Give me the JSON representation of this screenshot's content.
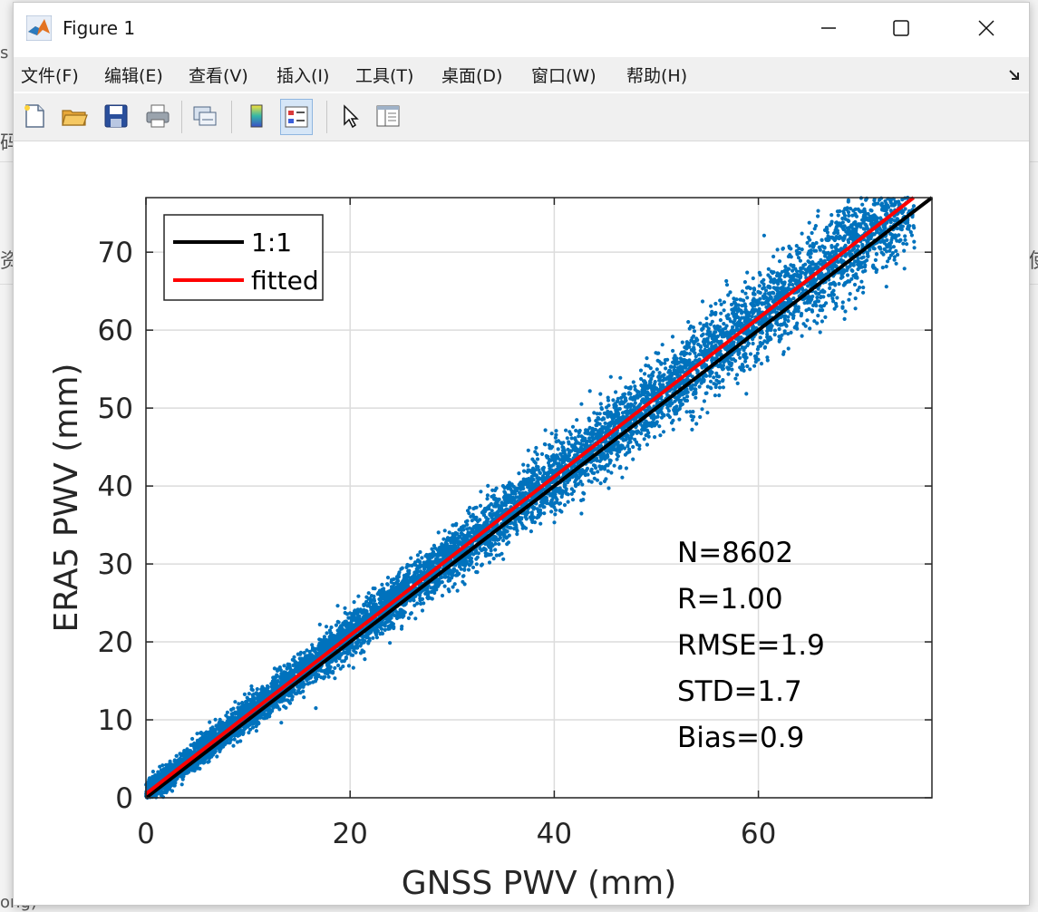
{
  "window": {
    "title": "Figure 1",
    "controls": {
      "minimize": "minimize",
      "maximize": "maximize",
      "close": "close"
    }
  },
  "menu": [
    {
      "label": "文件(F)"
    },
    {
      "label": "编辑(E)"
    },
    {
      "label": "查看(V)"
    },
    {
      "label": "插入(I)"
    },
    {
      "label": "工具(T)"
    },
    {
      "label": "桌面(D)"
    },
    {
      "label": "窗口(W)"
    },
    {
      "label": "帮助(H)"
    }
  ],
  "toolbar": [
    {
      "name": "new-figure-icon"
    },
    {
      "name": "open-file-icon"
    },
    {
      "name": "save-icon"
    },
    {
      "name": "print-icon"
    },
    {
      "name": "link-plot-icon"
    },
    {
      "name": "colorbar-icon"
    },
    {
      "name": "legend-icon",
      "active": true
    },
    {
      "name": "edit-plot-cursor-icon"
    },
    {
      "name": "property-inspector-icon"
    }
  ],
  "chart_data": {
    "type": "scatter",
    "xlabel": "GNSS PWV (mm)",
    "ylabel": "ERA5 PWV (mm)",
    "xlim": [
      0,
      77
    ],
    "ylim": [
      0,
      77
    ],
    "xticks": [
      0,
      20,
      40,
      60
    ],
    "yticks": [
      0,
      10,
      20,
      30,
      40,
      50,
      60,
      70
    ],
    "grid": true,
    "legend": {
      "placement": "top-left",
      "entries": [
        {
          "label": "1:1",
          "color": "#000000"
        },
        {
          "label": "fitted",
          "color": "#ff0000"
        }
      ]
    },
    "series": [
      {
        "type": "scatter",
        "color": "#0072bd",
        "n_points": 8602,
        "x_range": [
          0,
          77
        ],
        "scatter_sd": 1.7
      },
      {
        "type": "line",
        "x": [
          0,
          77
        ],
        "y": [
          0,
          77
        ],
        "color": "#000000"
      },
      {
        "type": "line",
        "x": [
          0,
          75.2
        ],
        "y": [
          0.5,
          77
        ],
        "color": "#ff0000"
      }
    ],
    "annotations": [
      "N=8602",
      "R=1.00",
      "RMSE=1.9",
      "STD=1.7",
      "Bias=0.9"
    ],
    "point_color": "#0072bd"
  }
}
